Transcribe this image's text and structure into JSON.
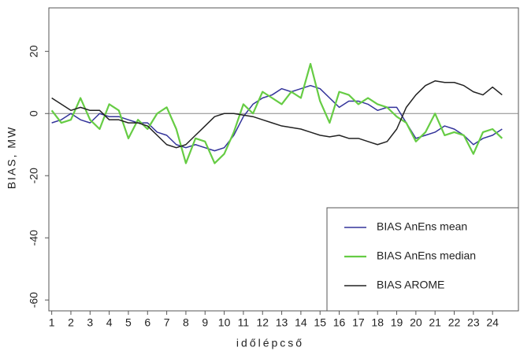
{
  "chart_data": {
    "type": "line",
    "x_label": "időlépcső",
    "y_label": "BIAS, MW",
    "x": [
      1,
      1.5,
      2,
      2.5,
      3,
      3.5,
      4,
      4.5,
      5,
      5.5,
      6,
      6.5,
      7,
      7.5,
      8,
      8.5,
      9,
      9.5,
      10,
      10.5,
      11,
      11.5,
      12,
      12.5,
      13,
      13.5,
      14,
      14.5,
      15,
      15.5,
      16,
      16.5,
      17,
      17.5,
      18,
      18.5,
      19,
      19.5,
      20,
      20.5,
      21,
      21.5,
      22,
      22.5,
      23,
      23.5,
      24,
      24.5
    ],
    "series": [
      {
        "name": "BIAS AnEns mean",
        "color": "#33339a",
        "values": [
          -3,
          -2,
          0,
          -2,
          -3,
          0,
          -1,
          -1,
          -2,
          -3,
          -3,
          -6,
          -7,
          -10,
          -11,
          -10,
          -11,
          -12,
          -11,
          -7,
          -1,
          3,
          5,
          6,
          8,
          7,
          8,
          9,
          8,
          5,
          2,
          4,
          4,
          3,
          1,
          2,
          2,
          -3,
          -8,
          -7,
          -6,
          -4,
          -5,
          -7,
          -10,
          -8,
          -7,
          -5
        ]
      },
      {
        "name": "BIAS AnEns median",
        "color": "#66cc44",
        "values": [
          1,
          -3,
          -2,
          5,
          -2,
          -5,
          3,
          1,
          -8,
          -2,
          -5,
          0,
          2,
          -5,
          -16,
          -8,
          -9,
          -16,
          -13,
          -6,
          3,
          0,
          7,
          5,
          3,
          7,
          5,
          16,
          4,
          -3,
          7,
          6,
          3,
          5,
          3,
          2,
          -1,
          -3,
          -9,
          -6,
          0,
          -7,
          -6,
          -7,
          -13,
          -6,
          -5,
          -8
        ]
      },
      {
        "name": "BIAS AROME",
        "color": "#222222",
        "values": [
          5,
          3,
          1,
          2,
          1,
          1,
          -2,
          -2,
          -3,
          -3,
          -4,
          -7,
          -10,
          -11,
          -10,
          -7,
          -4,
          -1,
          0,
          0,
          -0.5,
          -1,
          -2,
          -3,
          -4,
          -4.5,
          -5,
          -6,
          -7,
          -7.5,
          -7,
          -8,
          -8,
          -9,
          -10,
          -9,
          -5,
          2,
          6,
          9,
          10.5,
          10,
          10,
          9,
          7,
          6,
          8.5,
          6
        ]
      }
    ],
    "xlim": [
      0.85,
      25.35
    ],
    "xticks": [
      1,
      2,
      3,
      4,
      5,
      6,
      7,
      8,
      9,
      10,
      11,
      12,
      13,
      14,
      15,
      16,
      17,
      18,
      19,
      20,
      21,
      22,
      23,
      24
    ],
    "ylim": [
      -63.5,
      34
    ],
    "yticks": [
      -60,
      -40,
      -20,
      0,
      20
    ],
    "zero_line": true,
    "legend": "lower right"
  }
}
